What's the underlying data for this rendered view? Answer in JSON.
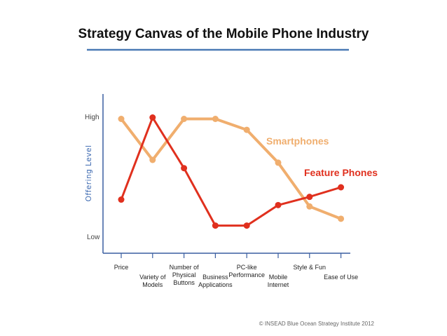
{
  "colors": {
    "smartphones": "#F0AE6E",
    "feature_phones": "#E0301E",
    "axis": "#3A5EA0",
    "title_rule": "#4A7AB5",
    "ylabel": "#3B68B0"
  },
  "chart_data": {
    "type": "line",
    "title": "Strategy Canvas of the Mobile Phone Industry",
    "xlabel": "",
    "ylabel": "Offering Level",
    "y_levels": {
      "high": "High",
      "low": "Low"
    },
    "ylim": [
      0,
      10
    ],
    "categories": [
      [
        "Price"
      ],
      [
        "Variety of",
        "Models"
      ],
      [
        "Number of",
        "Physical",
        "Buttons"
      ],
      [
        "Business",
        "Applications"
      ],
      [
        "PC-like",
        "Performance"
      ],
      [
        "Mobile",
        "Internet"
      ],
      [
        "Style & Fun"
      ],
      [
        "Ease of Use"
      ]
    ],
    "series": [
      {
        "name": "Smartphones",
        "color": "#F0AE6E",
        "values": [
          9.0,
          6.0,
          9.0,
          9.0,
          8.2,
          5.8,
          2.6,
          1.7
        ]
      },
      {
        "name": "Feature Phones",
        "color": "#E0301E",
        "values": [
          3.1,
          9.1,
          5.4,
          1.2,
          1.2,
          2.7,
          3.3,
          4.0
        ]
      }
    ],
    "grid": false,
    "legend": "inline labels, right side"
  },
  "footer": {
    "copyright": "© INSEAD Blue Ocean Strategy Institute 2012"
  }
}
